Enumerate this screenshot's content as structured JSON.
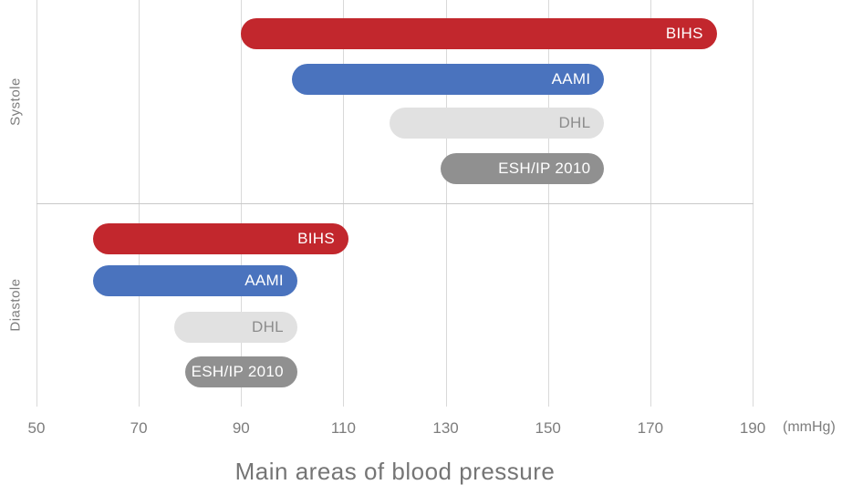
{
  "chart_data": {
    "type": "bar",
    "orientation": "horizontal-range",
    "title": "Main areas of blood pressure",
    "x_unit_label": "(mmHg)",
    "x_ticks": [
      50,
      70,
      90,
      110,
      130,
      150,
      170,
      190
    ],
    "xlim": [
      50,
      190
    ],
    "grid": "vertical-only",
    "legend": "labels-inside-bars",
    "groups": [
      {
        "label": "Systole",
        "bars": [
          {
            "name": "BIHS",
            "start": 90,
            "end": 183,
            "color": "#c2272d",
            "text_color": "#ffffff"
          },
          {
            "name": "AAMI",
            "start": 100,
            "end": 161,
            "color": "#4a73be",
            "text_color": "#ffffff"
          },
          {
            "name": "DHL",
            "start": 119,
            "end": 161,
            "color": "#e1e1e1",
            "text_color": "#8c8c8c"
          },
          {
            "name": "ESH/IP 2010",
            "start": 129,
            "end": 161,
            "color": "#909090",
            "text_color": "#ffffff"
          }
        ]
      },
      {
        "label": "Diastole",
        "bars": [
          {
            "name": "BIHS",
            "start": 61,
            "end": 111,
            "color": "#c2272d",
            "text_color": "#ffffff"
          },
          {
            "name": "AAMI",
            "start": 61,
            "end": 101,
            "color": "#4a73be",
            "text_color": "#ffffff"
          },
          {
            "name": "DHL",
            "start": 77,
            "end": 101,
            "color": "#e1e1e1",
            "text_color": "#8c8c8c"
          },
          {
            "name": "ESH/IP 2010",
            "start": 79,
            "end": 101,
            "color": "#909090",
            "text_color": "#ffffff"
          }
        ]
      }
    ]
  },
  "colors": {
    "grid": "#d9d9d9",
    "separator": "#c9c9c9",
    "axis_text": "#7d7d7d",
    "title_text": "#757575"
  }
}
